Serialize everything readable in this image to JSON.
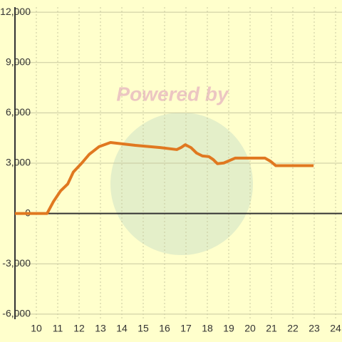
{
  "chart_data": {
    "type": "line",
    "watermark": "Powered by",
    "x": [
      9.0,
      10.5,
      10.8,
      11.13,
      11.47,
      11.73,
      12.13,
      12.47,
      12.93,
      13.47,
      14.63,
      15.8,
      16.57,
      16.77,
      16.97,
      17.23,
      17.5,
      17.77,
      18.07,
      18.27,
      18.47,
      18.77,
      19.3,
      20.7,
      20.97,
      21.2,
      22.97
    ],
    "series": [
      {
        "color": "#e07820",
        "values": [
          0,
          0,
          710,
          1340,
          1760,
          2470,
          3010,
          3520,
          3980,
          4230,
          4060,
          3930,
          3810,
          3930,
          4100,
          3930,
          3600,
          3430,
          3390,
          3220,
          2970,
          3010,
          3300,
          3300,
          3100,
          2850,
          2850
        ]
      }
    ],
    "xlim": [
      9.0,
      24.3
    ],
    "xticks": [
      10,
      11,
      12,
      13,
      14,
      15,
      16,
      17,
      18,
      19,
      20,
      21,
      22,
      23,
      24
    ],
    "ylim": [
      -6300,
      12300
    ],
    "yticks": [
      {
        "value": -6000,
        "label": "-6,000"
      },
      {
        "value": -3000,
        "label": "-3,000"
      },
      0,
      {
        "value": 3000,
        "label": "3,000"
      },
      {
        "value": 6000,
        "label": "6,000"
      },
      {
        "value": 9000,
        "label": "9,000"
      },
      {
        "value": 12000,
        "label": "12,000"
      }
    ],
    "grid": true
  }
}
